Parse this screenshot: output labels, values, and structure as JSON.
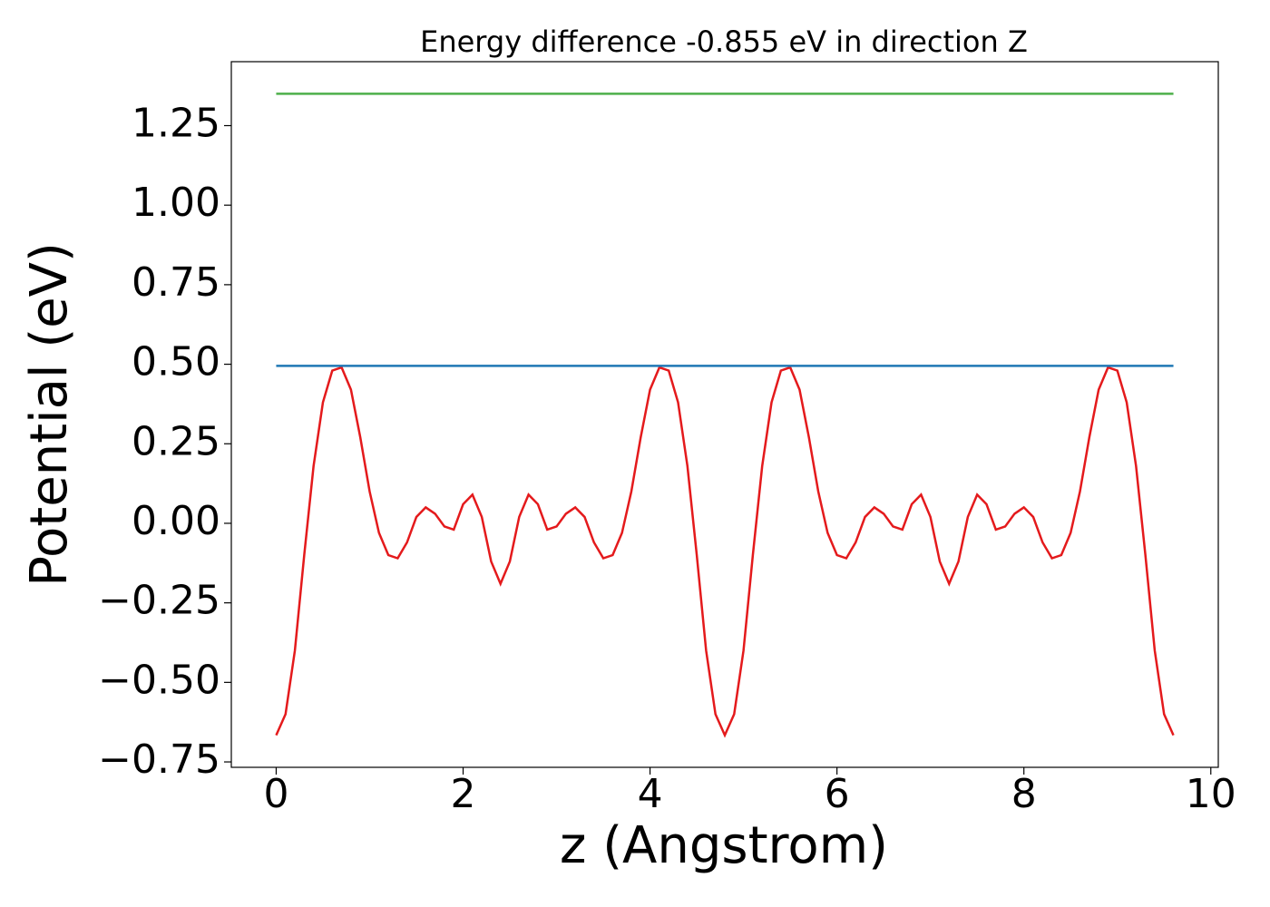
{
  "chart_data": {
    "type": "line",
    "title": "Energy difference -0.855 eV in direction Z",
    "xlabel": "z (Angstrom)",
    "ylabel": "Potential (eV)",
    "xlim": [
      -0.48,
      10.08
    ],
    "ylim": [
      -0.767,
      1.451
    ],
    "xticks": [
      0,
      2,
      4,
      6,
      8,
      10
    ],
    "yticks": [
      {
        "value": -0.75,
        "label": "−0.75"
      },
      {
        "value": -0.5,
        "label": "−0.50"
      },
      {
        "value": -0.25,
        "label": "−0.25"
      },
      {
        "value": 0,
        "label": "0.00"
      },
      0.25,
      {
        "value": 0.5,
        "label": "0.50"
      },
      0.75,
      {
        "value": 1,
        "label": "1.00"
      },
      1.25
    ],
    "grid": false,
    "series": [
      {
        "color": "#e41a1c",
        "x": [
          0,
          0.1,
          0.2,
          0.3,
          0.4,
          0.5,
          0.6,
          0.7,
          0.8,
          0.9,
          1.0,
          1.1,
          1.2,
          1.3,
          1.4,
          1.5,
          1.6,
          1.7,
          1.8,
          1.9,
          2.0,
          2.1,
          2.2,
          2.3,
          2.4,
          2.5,
          2.6,
          2.7,
          2.8,
          2.9,
          3.0,
          3.1,
          3.2,
          3.3,
          3.4,
          3.5,
          3.6,
          3.7,
          3.8,
          3.9,
          4.0,
          4.1,
          4.2,
          4.3,
          4.4,
          4.5,
          4.6,
          4.7,
          4.8,
          4.9,
          5.0,
          5.1,
          5.2,
          5.3,
          5.4,
          5.5,
          5.6,
          5.7,
          5.8,
          5.9,
          6.0,
          6.1,
          6.2,
          6.3,
          6.4,
          6.5,
          6.6,
          6.7,
          6.8,
          6.9,
          7.0,
          7.1,
          7.2,
          7.3,
          7.4,
          7.5,
          7.6,
          7.7,
          7.8,
          7.9,
          8.0,
          8.1,
          8.2,
          8.3,
          8.4,
          8.5,
          8.6,
          8.7,
          8.8,
          8.9,
          9.0,
          9.1,
          9.2,
          9.3,
          9.4,
          9.5,
          9.6
        ],
        "values": [
          -0.666,
          -0.6,
          -0.4,
          -0.1,
          0.18,
          0.38,
          0.48,
          0.49,
          0.42,
          0.27,
          0.1,
          -0.03,
          -0.1,
          -0.11,
          -0.06,
          0.02,
          0.05,
          0.03,
          -0.01,
          -0.02,
          0.06,
          0.09,
          0.02,
          -0.12,
          -0.19,
          -0.12,
          0.02,
          0.09,
          0.06,
          -0.02,
          -0.01,
          0.03,
          0.05,
          0.02,
          -0.06,
          -0.11,
          -0.1,
          -0.03,
          0.1,
          0.27,
          0.42,
          0.49,
          0.48,
          0.38,
          0.18,
          -0.1,
          -0.4,
          -0.6,
          -0.666,
          -0.6,
          -0.4,
          -0.1,
          0.18,
          0.38,
          0.48,
          0.49,
          0.42,
          0.27,
          0.1,
          -0.03,
          -0.1,
          -0.11,
          -0.06,
          0.02,
          0.05,
          0.03,
          -0.01,
          -0.02,
          0.06,
          0.09,
          0.02,
          -0.12,
          -0.19,
          -0.12,
          0.02,
          0.09,
          0.06,
          -0.02,
          -0.01,
          0.03,
          0.05,
          0.02,
          -0.06,
          -0.11,
          -0.1,
          -0.03,
          0.1,
          0.27,
          0.42,
          0.49,
          0.48,
          0.38,
          0.18,
          -0.1,
          -0.4,
          -0.6,
          -0.666
        ]
      },
      {
        "color": "#1f77b4",
        "x": [
          0,
          9.6
        ],
        "values": [
          0.495,
          0.495
        ]
      },
      {
        "color": "#4daf4a",
        "x": [
          0,
          9.6
        ],
        "values": [
          1.35,
          1.35
        ]
      }
    ]
  }
}
